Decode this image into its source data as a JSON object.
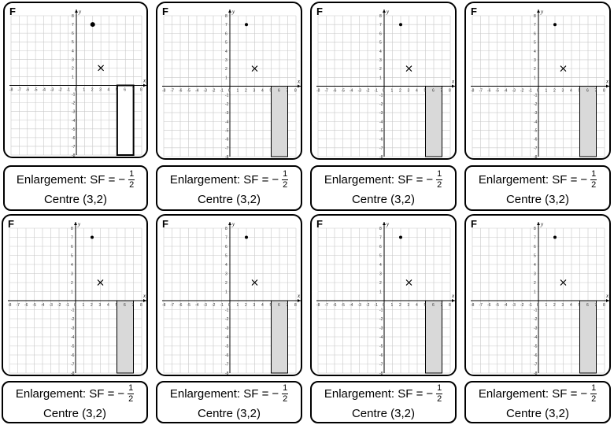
{
  "cards": [
    {
      "letter": "F",
      "sf_label": "Enlargement: SF =",
      "sign": "−",
      "frac_num": "1",
      "frac_den": "2",
      "centre": "Centre (3,2)"
    },
    {
      "letter": "F",
      "sf_label": "Enlargement: SF =",
      "sign": "−",
      "frac_num": "1",
      "frac_den": "2",
      "centre": "Centre (3,2)"
    },
    {
      "letter": "F",
      "sf_label": "Enlargement: SF =",
      "sign": "−",
      "frac_num": "1",
      "frac_den": "2",
      "centre": "Centre (3,2)"
    },
    {
      "letter": "F",
      "sf_label": "Enlargement: SF =",
      "sign": "−",
      "frac_num": "1",
      "frac_den": "2",
      "centre": "Centre (3,2)"
    },
    {
      "letter": "F",
      "sf_label": "Enlargement: SF =",
      "sign": "−",
      "frac_num": "1",
      "frac_den": "2",
      "centre": "Centre (3,2)"
    },
    {
      "letter": "F",
      "sf_label": "Enlargement: SF =",
      "sign": "−",
      "frac_num": "1",
      "frac_den": "2",
      "centre": "Centre (3,2)"
    },
    {
      "letter": "F",
      "sf_label": "Enlargement: SF =",
      "sign": "−",
      "frac_num": "1",
      "frac_den": "2",
      "centre": "Centre (3,2)"
    },
    {
      "letter": "F",
      "sf_label": "Enlargement: SF =",
      "sign": "−",
      "frac_num": "1",
      "frac_den": "2",
      "centre": "Centre (3,2)"
    }
  ],
  "grid": {
    "x_range": [
      -8,
      8
    ],
    "y_range": [
      -8,
      8
    ],
    "x_axis_label": "x",
    "y_axis_label": "y",
    "x_ticks": [
      "-8",
      "-7",
      "-6",
      "-5",
      "-4",
      "-3",
      "-2",
      "-1",
      "0",
      "1",
      "2",
      "3",
      "4",
      "5",
      "6",
      "7",
      "8"
    ],
    "y_ticks": [
      "8",
      "7",
      "6",
      "5",
      "4",
      "3",
      "2",
      "1",
      "0",
      "-1",
      "-2",
      "-3",
      "-4",
      "-5",
      "-6",
      "-7",
      "-8"
    ],
    "dot_point": [
      2,
      7
    ],
    "cross_point": [
      3,
      2
    ],
    "rectangle": {
      "x1": 5,
      "y1": 0,
      "x2": 7,
      "y2": -8
    },
    "colors": {
      "grid": "#c8c8c8",
      "axis": "#000000",
      "rect_fill": "#d9d9d9",
      "rect_fill_first": "#ffffff"
    }
  }
}
